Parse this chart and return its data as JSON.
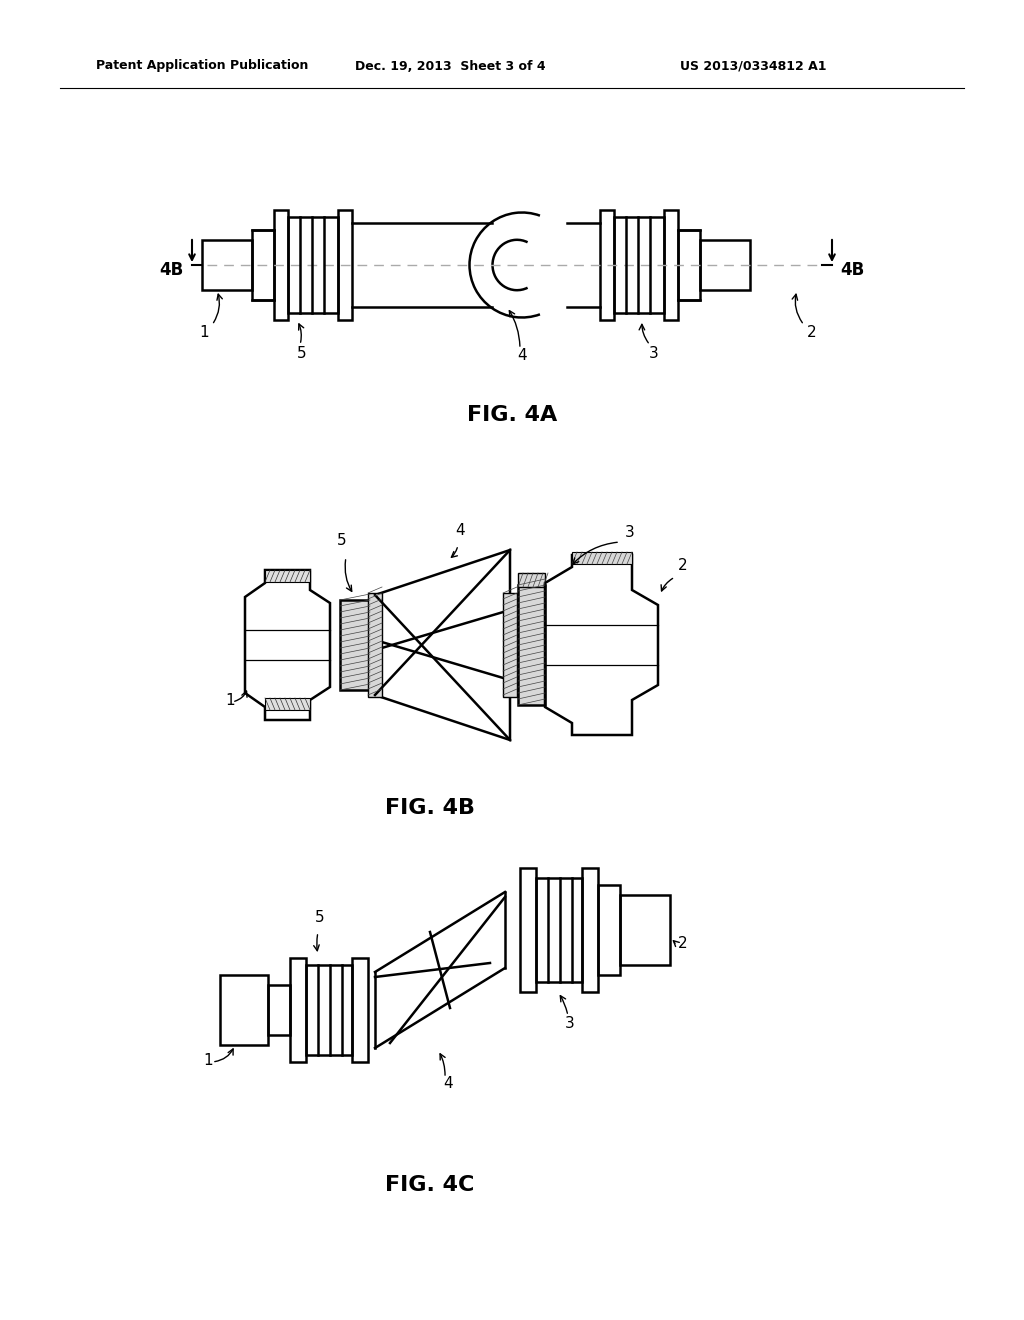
{
  "background_color": "#ffffff",
  "header_left": "Patent Application Publication",
  "header_center": "Dec. 19, 2013  Sheet 3 of 4",
  "header_right": "US 2013/0334812 A1",
  "fig4a_label": "FIG. 4A",
  "fig4b_label": "FIG. 4B",
  "fig4c_label": "FIG. 4C",
  "line_color": "#000000",
  "hatch_color": "#555555"
}
